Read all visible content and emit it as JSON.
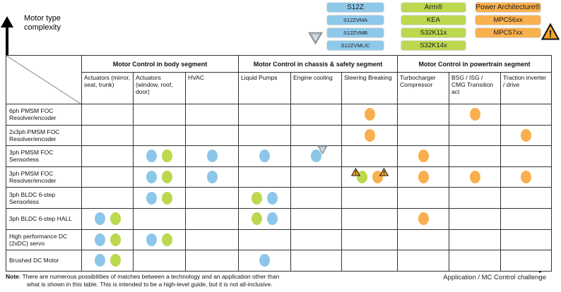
{
  "axes": {
    "y_label_line1": "Motor type",
    "y_label_line2": "complexity",
    "x_label": "Application / MC Control challenge"
  },
  "colors": {
    "blue": "#8CC7E9",
    "green": "#BCD84E",
    "orange": "#F8AF4D"
  },
  "legend": {
    "families": [
      {
        "name": "S12Z",
        "color": "#8FC9EA",
        "items": [
          "S12Z",
          "S12ZVMA",
          "S12ZVMB",
          "S12ZVML/C"
        ]
      },
      {
        "name": "Arm",
        "color": "#BCD84E",
        "items": [
          "Arm®",
          "KEA",
          "S32K11x",
          "S32K14x"
        ]
      },
      {
        "name": "Power Architecture",
        "color": "#F9B04E",
        "items": [
          "Power Architecture®",
          "MPC56xx",
          "MPC57xx"
        ]
      }
    ],
    "badges": {
      "v_glyph": "V",
      "warning_glyph": "!"
    }
  },
  "table": {
    "segments": [
      {
        "label": "Motor Control in body segment",
        "span": 3
      },
      {
        "label": "Motor Control in chassis & safety segment",
        "span": 3
      },
      {
        "label": "Motor Control in powertrain segment",
        "span": 3
      }
    ],
    "columns": [
      "Actuators (mirror, seat, trunk)",
      "Actuators (window, roof, door)",
      "HVAC",
      "Liquid Pumps",
      "Engine cooling",
      "Steering Breaking",
      "Turbocharger Compressor",
      "BSG / ISG / CMG Transition act",
      "Traction inverter / drive"
    ],
    "rows": [
      {
        "label": "6ph PMSM FOC Resolver/encoder",
        "cells": [
          [],
          [],
          [],
          [],
          [],
          [
            "orange"
          ],
          [],
          [
            "orange"
          ],
          []
        ]
      },
      {
        "label": "2x3ph PMSM FOC Resolver/encoder",
        "cells": [
          [],
          [],
          [],
          [],
          [],
          [
            "orange"
          ],
          [],
          [],
          [
            "orange"
          ]
        ]
      },
      {
        "label": "3ph PMSM FOC Sensorless",
        "cells": [
          [],
          [
            "blue",
            "green"
          ],
          [
            "blue"
          ],
          [
            "blue"
          ],
          [
            "blue|v"
          ],
          [],
          [
            "orange"
          ],
          [],
          []
        ]
      },
      {
        "label": "3ph PMSM FOC Resolver/encoder",
        "cells": [
          [],
          [
            "blue",
            "green"
          ],
          [
            "blue"
          ],
          [],
          [],
          [
            "green|warn-left",
            "orange|warn-right"
          ],
          [
            "orange"
          ],
          [
            "orange"
          ],
          [
            "orange"
          ]
        ]
      },
      {
        "label": "3ph BLDC 6-step Sensorless",
        "cells": [
          [],
          [
            "blue",
            "green"
          ],
          [],
          [
            "green",
            "blue"
          ],
          [],
          [],
          [],
          [],
          []
        ]
      },
      {
        "label": "3ph BLDC 6-step HALL",
        "cells": [
          [
            "blue",
            "green"
          ],
          [],
          [],
          [
            "green",
            "blue"
          ],
          [],
          [],
          [
            "orange"
          ],
          [],
          []
        ]
      },
      {
        "label": "High performance DC (2xDC) servo",
        "cells": [
          [
            "blue",
            "green"
          ],
          [
            "blue",
            "green"
          ],
          [],
          [],
          [],
          [],
          [],
          [],
          []
        ]
      },
      {
        "label": "Brushed DC Motor",
        "cells": [
          [
            "blue",
            "green"
          ],
          [],
          [],
          [
            "blue"
          ],
          [],
          [],
          [],
          [],
          []
        ]
      }
    ]
  },
  "note": {
    "prefix": "Note",
    "line1": ": There are numerous possibilities of matches between a technology and an application other than",
    "line2": "what is shown in this table. This is intended to be a high-level guide, but it is not all-inclusive."
  }
}
